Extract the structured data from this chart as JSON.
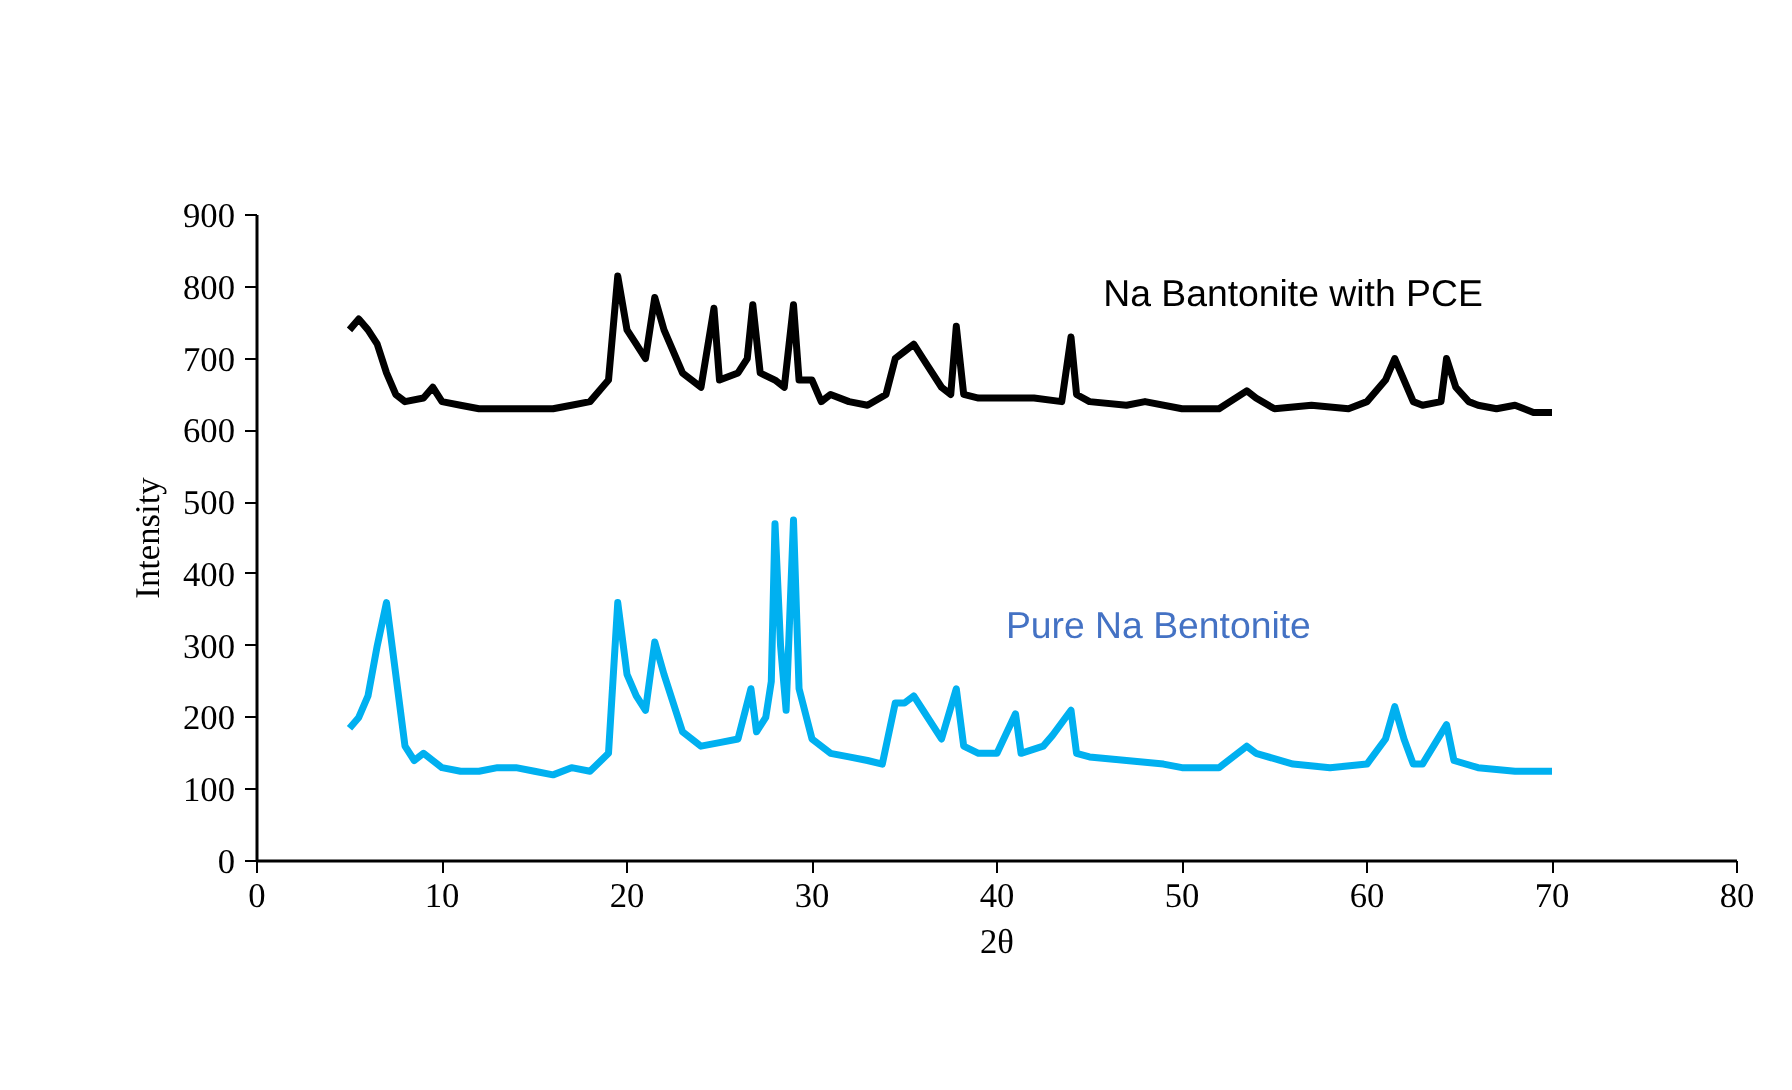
{
  "chart_data": {
    "type": "line",
    "xlabel": "2θ",
    "ylabel": "Intensity",
    "xlim": [
      0,
      80
    ],
    "xticks": [
      0,
      10,
      20,
      30,
      40,
      50,
      60,
      70,
      80
    ],
    "ylim": [
      0,
      900
    ],
    "yticks": [
      0,
      100,
      200,
      300,
      400,
      500,
      600,
      700,
      800,
      900
    ],
    "grid": false,
    "marker": "none",
    "line_style": "solid",
    "series": [
      {
        "name": "Na Bantonite with PCE",
        "color": "#000000",
        "x": [
          5,
          5.5,
          6,
          6.5,
          7,
          7.5,
          8,
          9,
          9.5,
          10,
          11,
          12,
          14,
          16,
          17,
          18,
          19,
          19.5,
          20,
          20.5,
          21,
          21.5,
          22,
          23,
          24,
          24.7,
          25,
          26,
          26.5,
          26.8,
          27.2,
          28,
          28.5,
          29,
          29.3,
          30,
          30.5,
          31,
          32,
          33,
          34,
          34.5,
          35,
          35.5,
          36,
          37,
          37.5,
          37.8,
          38.2,
          39,
          40,
          42,
          43.5,
          44,
          44.3,
          45,
          47,
          48,
          50,
          52,
          53.5,
          54,
          55,
          57,
          59,
          60,
          61,
          61.5,
          62,
          62.5,
          63,
          64,
          64.3,
          64.8,
          65.5,
          66,
          67,
          68,
          69,
          70
        ],
        "values": [
          740,
          755,
          740,
          720,
          680,
          650,
          640,
          645,
          660,
          640,
          635,
          630,
          630,
          630,
          635,
          640,
          670,
          815,
          740,
          720,
          700,
          785,
          740,
          680,
          660,
          770,
          670,
          680,
          700,
          775,
          680,
          670,
          660,
          775,
          670,
          670,
          640,
          650,
          640,
          635,
          650,
          700,
          710,
          720,
          700,
          660,
          650,
          745,
          650,
          645,
          645,
          645,
          640,
          730,
          650,
          640,
          635,
          640,
          630,
          630,
          655,
          645,
          630,
          635,
          630,
          640,
          670,
          700,
          670,
          640,
          635,
          640,
          700,
          660,
          640,
          635,
          630,
          635,
          625,
          625
        ]
      },
      {
        "name": "Pure Na Bentonite",
        "color": "#00b0f0",
        "x": [
          5,
          5.5,
          6,
          6.5,
          7,
          7.3,
          7.8,
          8,
          8.5,
          9,
          9.5,
          10,
          11,
          12,
          13,
          14,
          15,
          16,
          17,
          18,
          19,
          19.5,
          20,
          20.5,
          21,
          21.5,
          22,
          23,
          24,
          25,
          26,
          26.7,
          27,
          27.5,
          27.8,
          28,
          28.3,
          28.6,
          29,
          29.3,
          30,
          31,
          32,
          33,
          33.8,
          34.5,
          35,
          35.5,
          36,
          37,
          37.8,
          38.2,
          39,
          40,
          41,
          41.3,
          42.5,
          43,
          44,
          44.3,
          45,
          47,
          49,
          50,
          52,
          53.5,
          54,
          56,
          58,
          60,
          61,
          61.5,
          62,
          62.5,
          63,
          64.3,
          64.7,
          66,
          68,
          70
        ],
        "values": [
          185,
          200,
          230,
          300,
          360,
          300,
          200,
          160,
          140,
          150,
          140,
          130,
          125,
          125,
          130,
          130,
          125,
          120,
          130,
          125,
          150,
          360,
          260,
          230,
          210,
          305,
          260,
          180,
          160,
          165,
          170,
          240,
          180,
          200,
          250,
          470,
          300,
          210,
          475,
          240,
          170,
          150,
          145,
          140,
          135,
          220,
          220,
          230,
          210,
          170,
          240,
          160,
          150,
          150,
          205,
          150,
          160,
          175,
          210,
          150,
          145,
          140,
          135,
          130,
          130,
          160,
          150,
          135,
          130,
          135,
          170,
          215,
          170,
          135,
          135,
          190,
          140,
          130,
          125,
          125
        ]
      }
    ]
  }
}
